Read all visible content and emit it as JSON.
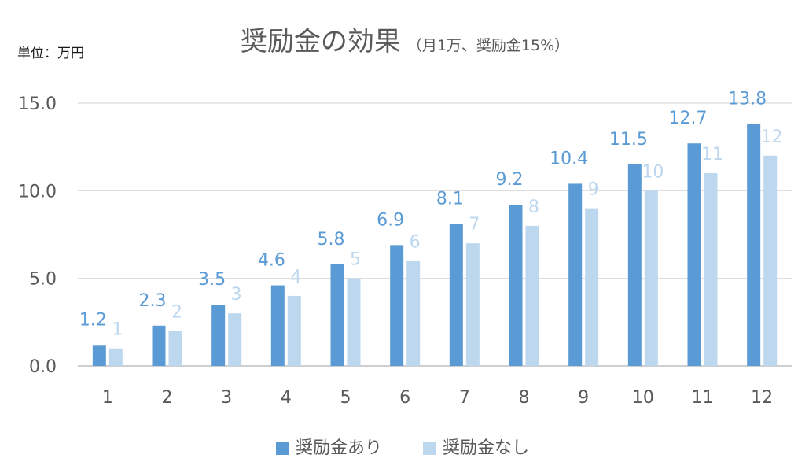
{
  "chart_data": {
    "type": "bar",
    "title": "奨励金の効果",
    "subtitle": "（月1万、奨励金15%）",
    "unit_label": "単位：万円",
    "xlabel": "",
    "ylabel": "",
    "categories": [
      "1",
      "2",
      "3",
      "4",
      "5",
      "6",
      "7",
      "8",
      "9",
      "10",
      "11",
      "12"
    ],
    "series": [
      {
        "name": "奨励金あり",
        "color": "#5b9bd5",
        "values": [
          1.2,
          2.3,
          3.5,
          4.6,
          5.8,
          6.9,
          8.1,
          9.2,
          10.4,
          11.5,
          12.7,
          13.8
        ],
        "labels": [
          "1.2",
          "2.3",
          "3.5",
          "4.6",
          "5.8",
          "6.9",
          "8.1",
          "9.2",
          "10.4",
          "11.5",
          "12.7",
          "13.8"
        ]
      },
      {
        "name": "奨励金なし",
        "color": "#bdd7ee",
        "values": [
          1,
          2,
          3,
          4,
          5,
          6,
          7,
          8,
          9,
          10,
          11,
          12
        ],
        "labels": [
          "1",
          "2",
          "3",
          "4",
          "5",
          "6",
          "7",
          "8",
          "9",
          "10",
          "11",
          "12"
        ]
      }
    ],
    "ylim": [
      0,
      15
    ],
    "yticks": [
      "0.0",
      "5.0",
      "10.0",
      "15.0"
    ],
    "ytick_values": [
      0,
      5,
      10,
      15
    ],
    "grid": true,
    "legend_position": "bottom"
  }
}
